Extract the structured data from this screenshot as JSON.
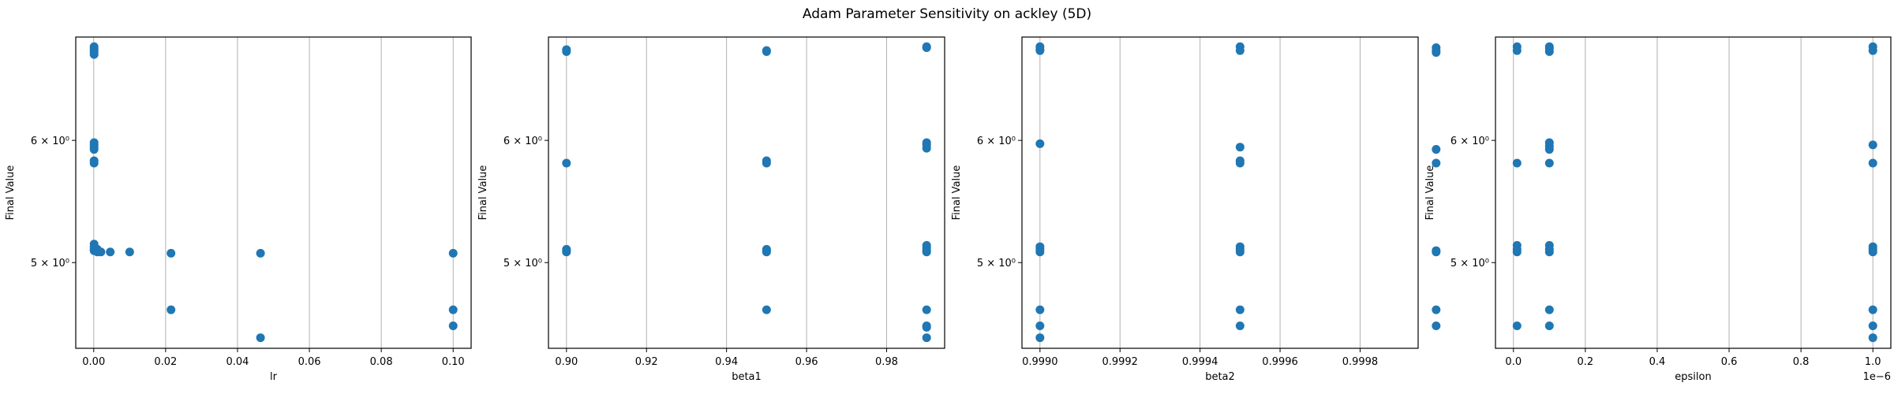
{
  "figure": {
    "title": "Adam Parameter Sensitivity on ackley (5D)"
  },
  "colors": {
    "points": "#1f77b4",
    "grid": "#b0b0b0",
    "axes": "#000000"
  },
  "chart_data": [
    {
      "type": "scatter",
      "title": "",
      "xlabel": "lr",
      "ylabel": "Final Value",
      "yscale": "log",
      "grid": "x-only",
      "xlim": [
        -0.005,
        0.105
      ],
      "ylim": [
        4.4,
        7.0
      ],
      "xticks": [
        0.0,
        0.02,
        0.04,
        0.06,
        0.08,
        0.1
      ],
      "xtick_labels": [
        "0.00",
        "0.02",
        "0.04",
        "0.06",
        "0.08",
        "0.10"
      ],
      "yticks": [
        5,
        6
      ],
      "ytick_labels": [
        "5 × 10⁰",
        "6 × 10⁰"
      ],
      "offset_text": "",
      "x": [
        0.0001,
        0.0001,
        0.0001,
        0.0001,
        0.0001,
        0.0001,
        0.0001,
        0.0001,
        0.0001,
        0.0001,
        0.0001,
        0.0001,
        0.0001,
        0.0001,
        0.0001,
        0.001,
        0.001,
        0.002,
        0.0046,
        0.01,
        0.0215,
        0.0215,
        0.0464,
        0.0464,
        0.1,
        0.1,
        0.1
      ],
      "y": [
        6.9,
        6.88,
        6.86,
        6.84,
        6.82,
        5.98,
        5.96,
        5.94,
        5.92,
        5.82,
        5.8,
        5.14,
        5.12,
        5.1,
        5.09,
        5.1,
        5.08,
        5.08,
        5.08,
        5.08,
        5.07,
        4.66,
        5.07,
        4.47,
        5.07,
        4.66,
        4.55
      ]
    },
    {
      "type": "scatter",
      "title": "",
      "xlabel": "beta1",
      "ylabel": "Final Value",
      "yscale": "log",
      "grid": "x-only",
      "xlim": [
        0.8955,
        0.9945
      ],
      "ylim": [
        4.4,
        7.0
      ],
      "xticks": [
        0.9,
        0.92,
        0.94,
        0.96,
        0.98
      ],
      "xtick_labels": [
        "0.90",
        "0.92",
        "0.94",
        "0.96",
        "0.98"
      ],
      "yticks": [
        5,
        6
      ],
      "ytick_labels": [
        "5 × 10⁰",
        "6 × 10⁰"
      ],
      "offset_text": "",
      "x": [
        0.9,
        0.9,
        0.9,
        0.9,
        0.9,
        0.9,
        0.95,
        0.95,
        0.95,
        0.95,
        0.95,
        0.95,
        0.95,
        0.95,
        0.99,
        0.99,
        0.99,
        0.99,
        0.99,
        0.99,
        0.99,
        0.99,
        0.99,
        0.99,
        0.99,
        0.99,
        0.99
      ],
      "y": [
        6.87,
        6.85,
        5.8,
        5.1,
        5.09,
        5.08,
        6.86,
        6.85,
        5.82,
        5.8,
        5.1,
        5.09,
        5.08,
        4.66,
        6.9,
        6.89,
        5.98,
        5.96,
        5.93,
        5.13,
        5.11,
        5.09,
        5.08,
        4.66,
        4.55,
        4.54,
        4.47
      ]
    },
    {
      "type": "scatter",
      "title": "",
      "xlabel": "beta2",
      "ylabel": "Final Value",
      "yscale": "log",
      "grid": "x-only",
      "xlim": [
        0.998955,
        0.999945
      ],
      "ylim": [
        4.4,
        7.0
      ],
      "xticks": [
        0.999,
        0.9992,
        0.9994,
        0.9996,
        0.9998
      ],
      "xtick_labels": [
        "0.9990",
        "0.9992",
        "0.9994",
        "0.9996",
        "0.9998"
      ],
      "yticks": [
        5,
        6
      ],
      "ytick_labels": [
        "5 × 10⁰",
        "6 × 10⁰"
      ],
      "offset_text": "",
      "x": [
        0.999,
        0.999,
        0.999,
        0.999,
        0.999,
        0.999,
        0.999,
        0.999,
        0.999,
        0.999,
        0.9995,
        0.9995,
        0.9995,
        0.9995,
        0.9995,
        0.9995,
        0.9995,
        0.9995,
        0.9995,
        0.9995,
        0.99999,
        0.99999,
        0.99999,
        0.99999,
        0.99999,
        0.99999,
        0.99999,
        0.99999,
        0.99999
      ],
      "y": [
        6.9,
        6.87,
        6.86,
        5.97,
        5.12,
        5.1,
        5.08,
        4.66,
        4.55,
        4.47,
        6.9,
        6.86,
        5.94,
        5.82,
        5.8,
        5.12,
        5.1,
        5.08,
        4.66,
        4.55,
        6.89,
        6.86,
        6.84,
        5.92,
        5.8,
        5.09,
        5.08,
        4.66,
        4.55
      ]
    },
    {
      "type": "scatter",
      "title": "",
      "xlabel": "epsilon",
      "ylabel": "Final Value",
      "yscale": "log",
      "grid": "x-only",
      "xlim": [
        -0.05,
        1.05
      ],
      "ylim": [
        4.4,
        7.0
      ],
      "xticks": [
        0.0,
        0.2,
        0.4,
        0.6,
        0.8,
        1.0
      ],
      "xtick_labels": [
        "0.0",
        "0.2",
        "0.4",
        "0.6",
        "0.8",
        "1.0"
      ],
      "yticks": [
        5,
        6
      ],
      "ytick_labels": [
        "5 × 10⁰",
        "6 × 10⁰"
      ],
      "offset_text": "1e−6",
      "x": [
        0.01,
        0.01,
        0.01,
        0.01,
        0.01,
        0.01,
        0.01,
        0.1,
        0.1,
        0.1,
        0.1,
        0.1,
        0.1,
        0.1,
        0.1,
        0.1,
        0.1,
        0.1,
        0.1,
        1.0,
        1.0,
        1.0,
        1.0,
        1.0,
        1.0,
        1.0,
        1.0,
        1.0,
        1.0
      ],
      "y": [
        6.9,
        6.86,
        5.8,
        5.13,
        5.1,
        5.08,
        4.55,
        6.9,
        6.88,
        6.85,
        5.98,
        5.95,
        5.92,
        5.8,
        5.13,
        5.1,
        5.08,
        4.66,
        4.55,
        6.9,
        6.86,
        5.96,
        5.8,
        5.12,
        5.1,
        5.08,
        4.66,
        4.55,
        4.47
      ]
    }
  ]
}
